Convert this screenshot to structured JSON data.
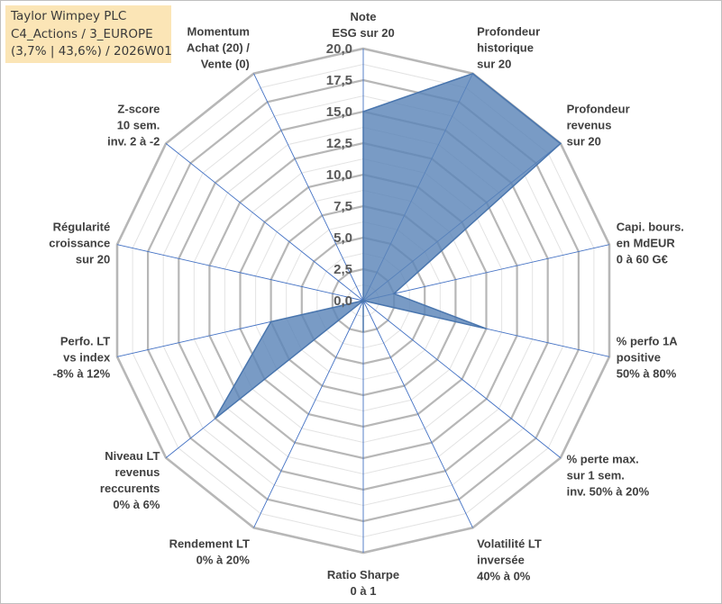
{
  "header": {
    "line1": "Taylor Wimpey PLC",
    "line2": "C4_Actions / 3_EUROPE",
    "line3": "(3,7% | 43,6%) / 2026W01"
  },
  "colors": {
    "fill": "#5b85b8",
    "stroke": "#4a76ae",
    "grid": "#b7b7b7",
    "spoke": "#4472c4",
    "title_bg": "#fbe5b6"
  },
  "chart_data": {
    "type": "radar",
    "r_range": [
      0,
      20
    ],
    "r_ticks": [
      "0,0",
      "2,5",
      "5,0",
      "7,5",
      "10,0",
      "12,5",
      "15,0",
      "17,5",
      "20,0"
    ],
    "grid": true,
    "axes": [
      [
        "Note",
        "ESG sur 20"
      ],
      [
        "Profondeur",
        "historique",
        "sur 20"
      ],
      [
        "Profondeur",
        "revenus",
        "sur 20"
      ],
      [
        "Capi. bours.",
        "en MdEUR",
        "0 à 60 G€"
      ],
      [
        "% perfo 1A",
        "positive",
        "50% à 80%"
      ],
      [
        "% perte max.",
        "sur 1 sem.",
        "inv. 50% à 20%"
      ],
      [
        "Volatilité LT",
        "inversée",
        "40% à 0%"
      ],
      [
        "Ratio Sharpe",
        "0 à 1"
      ],
      [
        "Rendement LT",
        "0% à 20%"
      ],
      [
        "Niveau LT",
        "revenus",
        "reccurents",
        "0% à 6%"
      ],
      [
        "Perfo. LT",
        "vs index",
        "-8% à 12%"
      ],
      [
        "Régularité",
        "croissance",
        "sur 20"
      ],
      [
        "Z-score",
        "10 sem.",
        "inv. 2 à -2"
      ],
      [
        "Momentum",
        "Achat (20) /",
        "Vente (0)"
      ]
    ],
    "values": [
      15,
      20,
      20,
      2.5,
      10,
      0,
      0,
      2.5,
      0,
      15,
      7.5,
      0,
      0,
      0
    ]
  }
}
